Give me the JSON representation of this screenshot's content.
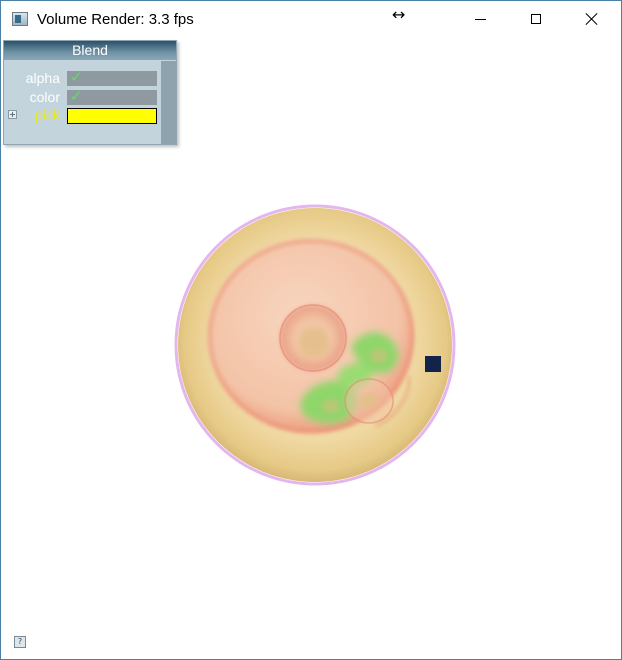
{
  "window": {
    "title": "Volume Render: 3.3 fps",
    "controls": {
      "minimize_icon": "minimize-icon",
      "maximize_icon": "maximize-icon",
      "close_icon": "close-icon"
    },
    "cursor_glyph": "↔"
  },
  "blend_panel": {
    "title": "Blend",
    "rows": [
      {
        "label": "alpha",
        "checked": true,
        "check_glyph": "✓"
      },
      {
        "label": "color",
        "checked": true,
        "check_glyph": "✓"
      },
      {
        "label": "pick",
        "swatch_color": "#ffff00"
      }
    ]
  },
  "help": {
    "glyph": "?"
  },
  "colors": {
    "outer_shell": "#e9cf8c",
    "inner_body": "#f5c7aa",
    "membrane": "#e78a6e",
    "green_region": "#8fd66a",
    "halo": "#e0b2ea",
    "marker": "#13244a",
    "pick": "#ffff00"
  }
}
